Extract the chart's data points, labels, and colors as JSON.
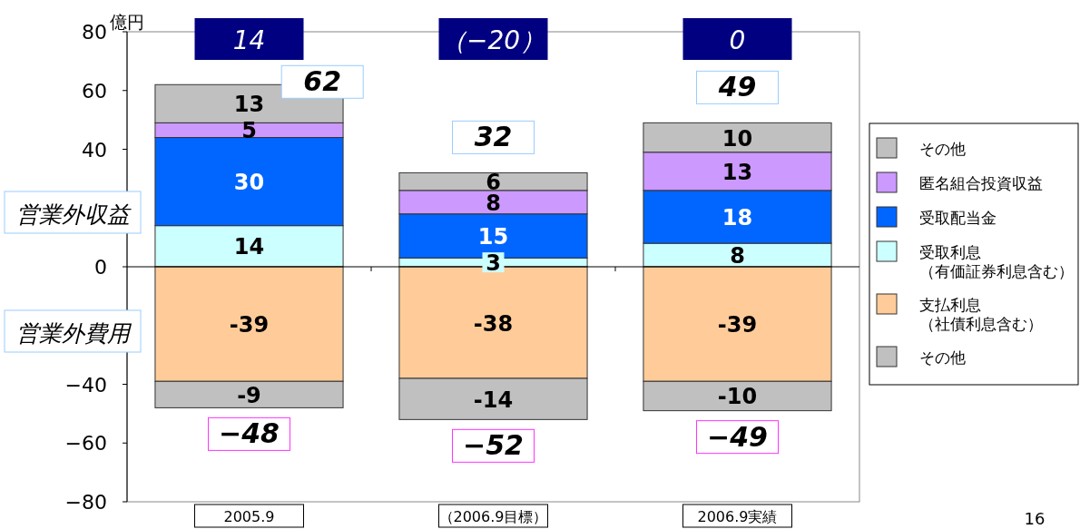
{
  "chart_data": {
    "type": "bar",
    "stacked": true,
    "ylabel": "億円",
    "categories": [
      "2005.9",
      "（2006.9目標）",
      "2006.9実績"
    ],
    "series": [
      {
        "name": "受取利息（有価証券利息含む）",
        "color": "#ccffff",
        "values": [
          14,
          3,
          8
        ]
      },
      {
        "name": "受取配当金",
        "color": "#0066ff",
        "values": [
          30,
          15,
          18
        ]
      },
      {
        "name": "匿名組合投資収益",
        "color": "#cc99ff",
        "values": [
          5,
          8,
          13
        ]
      },
      {
        "name": "その他",
        "color": "#c0c0c0",
        "values": [
          13,
          6,
          10
        ]
      },
      {
        "name": "支払利息（社債利息含む）",
        "color": "#ffcc99",
        "values": [
          -39,
          -38,
          -39
        ]
      },
      {
        "name": "その他",
        "color": "#c0c0c0",
        "values": [
          -9,
          -14,
          -10
        ]
      }
    ],
    "ylim": [
      -80,
      80
    ],
    "yticks": [
      -80,
      -60,
      -40,
      {
        "value": -20,
        "label": null
      },
      0,
      {
        "value": 20,
        "label": null
      },
      40,
      60,
      80
    ],
    "data_labels": true,
    "ref_lines": [
      {
        "axis": "y",
        "value": 0
      }
    ],
    "legend": "right",
    "grid": false,
    "annotations": [
      "14",
      "（−20）",
      "0",
      "営業外収益",
      "営業外費用",
      "16",
      {
        "text": "62",
        "x": "2005.9",
        "y": 62
      },
      {
        "text": "32",
        "x": "（2006.9目標）",
        "y": 32
      },
      {
        "text": "49",
        "x": "2006.9実績",
        "y": 49
      },
      {
        "text": "−48",
        "x": "2005.9",
        "y": -48
      },
      {
        "text": "−52",
        "x": "（2006.9目標）",
        "y": -52
      },
      {
        "text": "−49",
        "x": "2006.9実績",
        "y": -49
      }
    ]
  }
}
